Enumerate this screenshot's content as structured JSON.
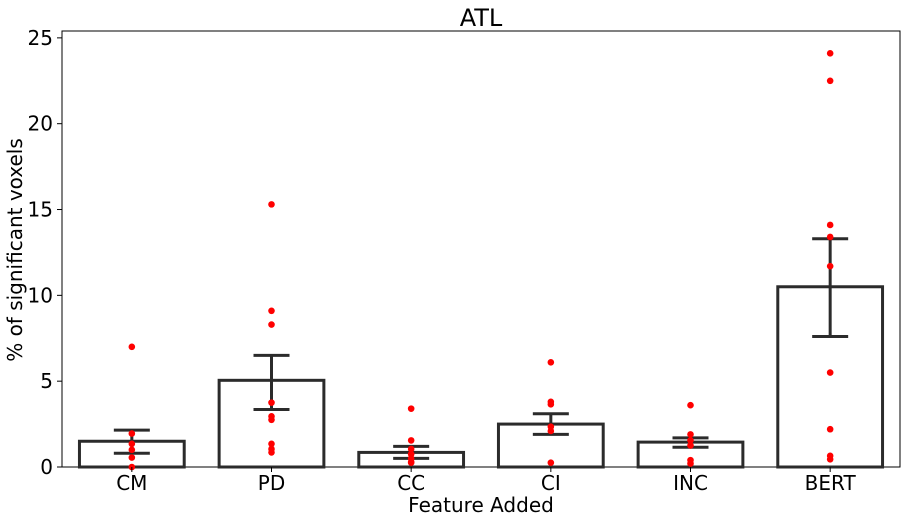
{
  "chart_data": {
    "type": "bar",
    "title": "ATL",
    "xlabel": "Feature Added",
    "ylabel": "% of significant voxels",
    "categories": [
      "CM",
      "PD",
      "CC",
      "CI",
      "INC",
      "BERT"
    ],
    "values": [
      1.5,
      5.05,
      0.85,
      2.5,
      1.45,
      10.5
    ],
    "error_bars": [
      {
        "low": 0.8,
        "high": 2.15
      },
      {
        "low": 3.35,
        "high": 6.5
      },
      {
        "low": 0.5,
        "high": 1.2
      },
      {
        "low": 1.9,
        "high": 3.1
      },
      {
        "low": 1.15,
        "high": 1.7
      },
      {
        "low": 7.6,
        "high": 13.3
      }
    ],
    "points": [
      [
        7.0,
        1.95,
        1.35,
        1.0,
        0.55,
        0.0
      ],
      [
        15.3,
        9.1,
        8.3,
        3.75,
        2.95,
        2.75,
        1.35,
        1.05,
        0.85
      ],
      [
        3.4,
        1.55,
        1.05,
        0.75,
        0.5,
        0.3,
        0.25
      ],
      [
        6.1,
        3.8,
        3.65,
        2.35,
        2.1,
        0.25
      ],
      [
        3.6,
        1.9,
        1.55,
        1.25,
        0.4,
        0.2
      ],
      [
        24.1,
        22.5,
        14.1,
        13.4,
        11.7,
        5.5,
        2.2,
        0.65,
        0.45
      ]
    ],
    "yticks": [
      0,
      5,
      10,
      15,
      20,
      25
    ],
    "ylim": [
      0,
      25.4
    ],
    "grid": false,
    "colors": {
      "bar_edge": "#2b2b2b",
      "bar_fill": "#ffffff",
      "points": "#ff0000",
      "error_bar": "#2b2b2b"
    }
  }
}
